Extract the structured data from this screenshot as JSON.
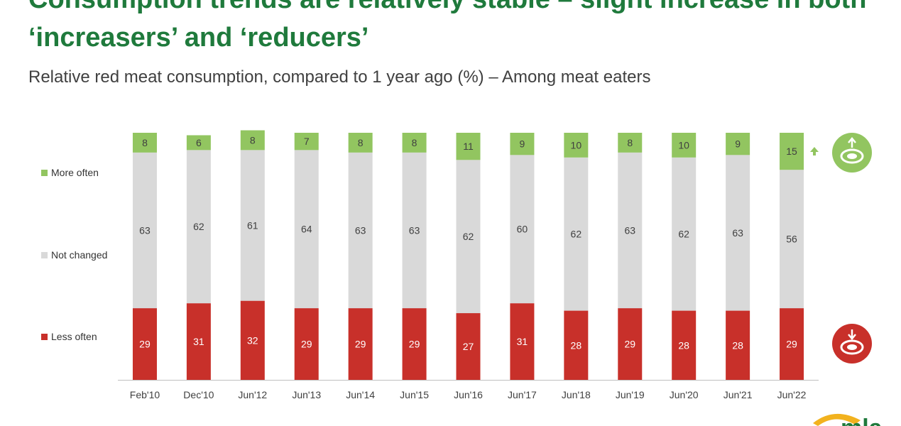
{
  "page": {
    "title": "Consumption trends are relatively stable – slight increase in both ‘increasers’ and ‘reducers’",
    "subtitle": "Relative red meat consumption, compared to 1 year ago (%) – Among meat eaters"
  },
  "legend": [
    {
      "label": "More often",
      "color": "#92c560"
    },
    {
      "label": "Not changed",
      "color": "#d9d9d9"
    },
    {
      "label": "Less often",
      "color": "#c8302a"
    }
  ],
  "icons": {
    "increase": "meat-up-icon",
    "decrease": "meat-down-icon",
    "arrow": "arrow-up-icon",
    "logo": "mla-logo"
  },
  "colors": {
    "title": "#1f7a3c",
    "more": "#92c560",
    "same": "#d9d9d9",
    "less": "#c8302a"
  },
  "chart_data": {
    "type": "bar",
    "stacked": true,
    "categories": [
      "Feb'10",
      "Dec'10",
      "Jun'12",
      "Jun'13",
      "Jun'14",
      "Jun'15",
      "Jun'16",
      "Jun'17",
      "Jun'18",
      "Jun'19",
      "Jun'20",
      "Jun'21",
      "Jun'22"
    ],
    "series": [
      {
        "name": "Less often",
        "color": "#c8302a",
        "values": [
          29,
          31,
          32,
          29,
          29,
          29,
          27,
          31,
          28,
          29,
          28,
          28,
          29
        ]
      },
      {
        "name": "Not changed",
        "color": "#d9d9d9",
        "values": [
          63,
          62,
          61,
          64,
          63,
          63,
          62,
          60,
          62,
          63,
          62,
          63,
          56
        ]
      },
      {
        "name": "More often",
        "color": "#92c560",
        "values": [
          8,
          6,
          8,
          7,
          8,
          8,
          11,
          9,
          10,
          8,
          10,
          9,
          15
        ]
      }
    ],
    "ylim": [
      0,
      100
    ],
    "grid": false,
    "legend_position": "left",
    "data_labels": true
  }
}
